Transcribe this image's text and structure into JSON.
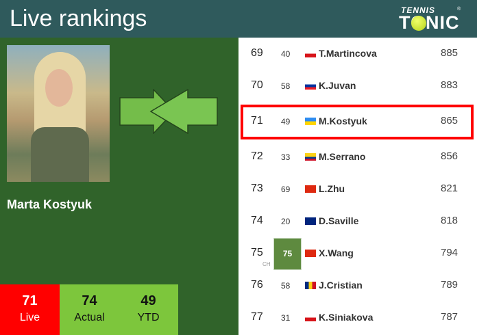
{
  "header": {
    "title": "Live rankings",
    "logo_top": "TENNIS",
    "logo_bottom": "TONIC"
  },
  "player": {
    "name": "Marta Kostyuk"
  },
  "stats": [
    {
      "value": "71",
      "label": "Live"
    },
    {
      "value": "74",
      "label": "Actual"
    },
    {
      "value": "49",
      "label": "YTD"
    }
  ],
  "colors": {
    "header": "#2f5a5c",
    "panel": "#30632a",
    "live": "#ff0000",
    "stats": "#7dc63c",
    "highlight": "#ff0000"
  },
  "rankings": [
    {
      "rank": "69",
      "best": "40",
      "country": "CZE",
      "name": "T.Martincova",
      "points": "885"
    },
    {
      "rank": "70",
      "best": "58",
      "country": "SLO",
      "name": "K.Juvan",
      "points": "883"
    },
    {
      "rank": "71",
      "best": "49",
      "country": "UKR",
      "name": "M.Kostyuk",
      "points": "865",
      "highlighted": true
    },
    {
      "rank": "72",
      "best": "33",
      "country": "COL",
      "name": "M.Serrano",
      "points": "856"
    },
    {
      "rank": "73",
      "best": "69",
      "country": "CHN",
      "name": "L.Zhu",
      "points": "821"
    },
    {
      "rank": "74",
      "best": "20",
      "country": "AUS",
      "name": "D.Saville",
      "points": "818"
    },
    {
      "rank": "75",
      "best": "75",
      "best_tag": "CH",
      "country": "CHN",
      "name": "X.Wang",
      "points": "794"
    },
    {
      "rank": "76",
      "best": "58",
      "country": "ROU",
      "name": "J.Cristian",
      "points": "789"
    },
    {
      "rank": "77",
      "best": "31",
      "country": "CZE",
      "name": "K.Siniakova",
      "points": "787"
    }
  ]
}
